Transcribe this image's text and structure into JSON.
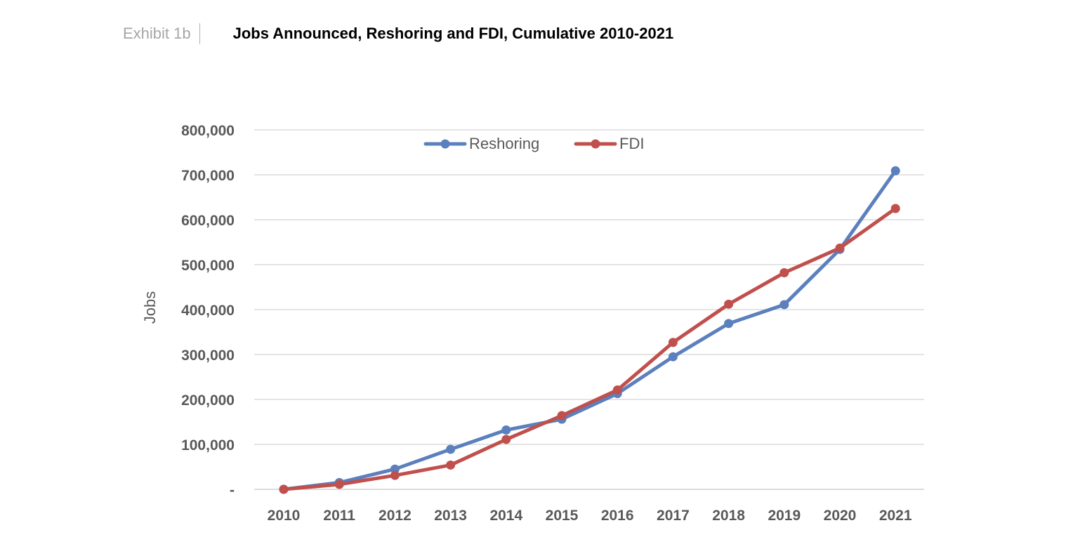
{
  "header": {
    "exhibit_label": "Exhibit 1b",
    "title": "Jobs Announced, Reshoring and FDI, Cumulative 2010-2021"
  },
  "chart_data": {
    "type": "line",
    "title": "Jobs Announced, Reshoring and FDI, Cumulative 2010-2021",
    "xlabel": "",
    "ylabel": "Jobs",
    "categories": [
      "2010",
      "2011",
      "2012",
      "2013",
      "2014",
      "2015",
      "2016",
      "2017",
      "2018",
      "2019",
      "2020",
      "2021"
    ],
    "y_ticks": [
      0,
      100000,
      200000,
      300000,
      400000,
      500000,
      600000,
      700000,
      800000
    ],
    "y_tick_labels": [
      "-",
      "100,000",
      "200,000",
      "300,000",
      "400,000",
      "500,000",
      "600,000",
      "700,000",
      "800,000"
    ],
    "ylim": [
      0,
      800000
    ],
    "grid": true,
    "legend_position": "top-center",
    "series": [
      {
        "name": "Reshoring",
        "color": "#5b80bd",
        "values": [
          0,
          15000,
          45000,
          89000,
          132000,
          156000,
          213000,
          295000,
          369000,
          411000,
          534000,
          709000
        ]
      },
      {
        "name": "FDI",
        "color": "#c0504d",
        "values": [
          0,
          11000,
          31000,
          54000,
          111000,
          164000,
          221000,
          327000,
          412000,
          482000,
          537000,
          625000
        ]
      }
    ]
  }
}
